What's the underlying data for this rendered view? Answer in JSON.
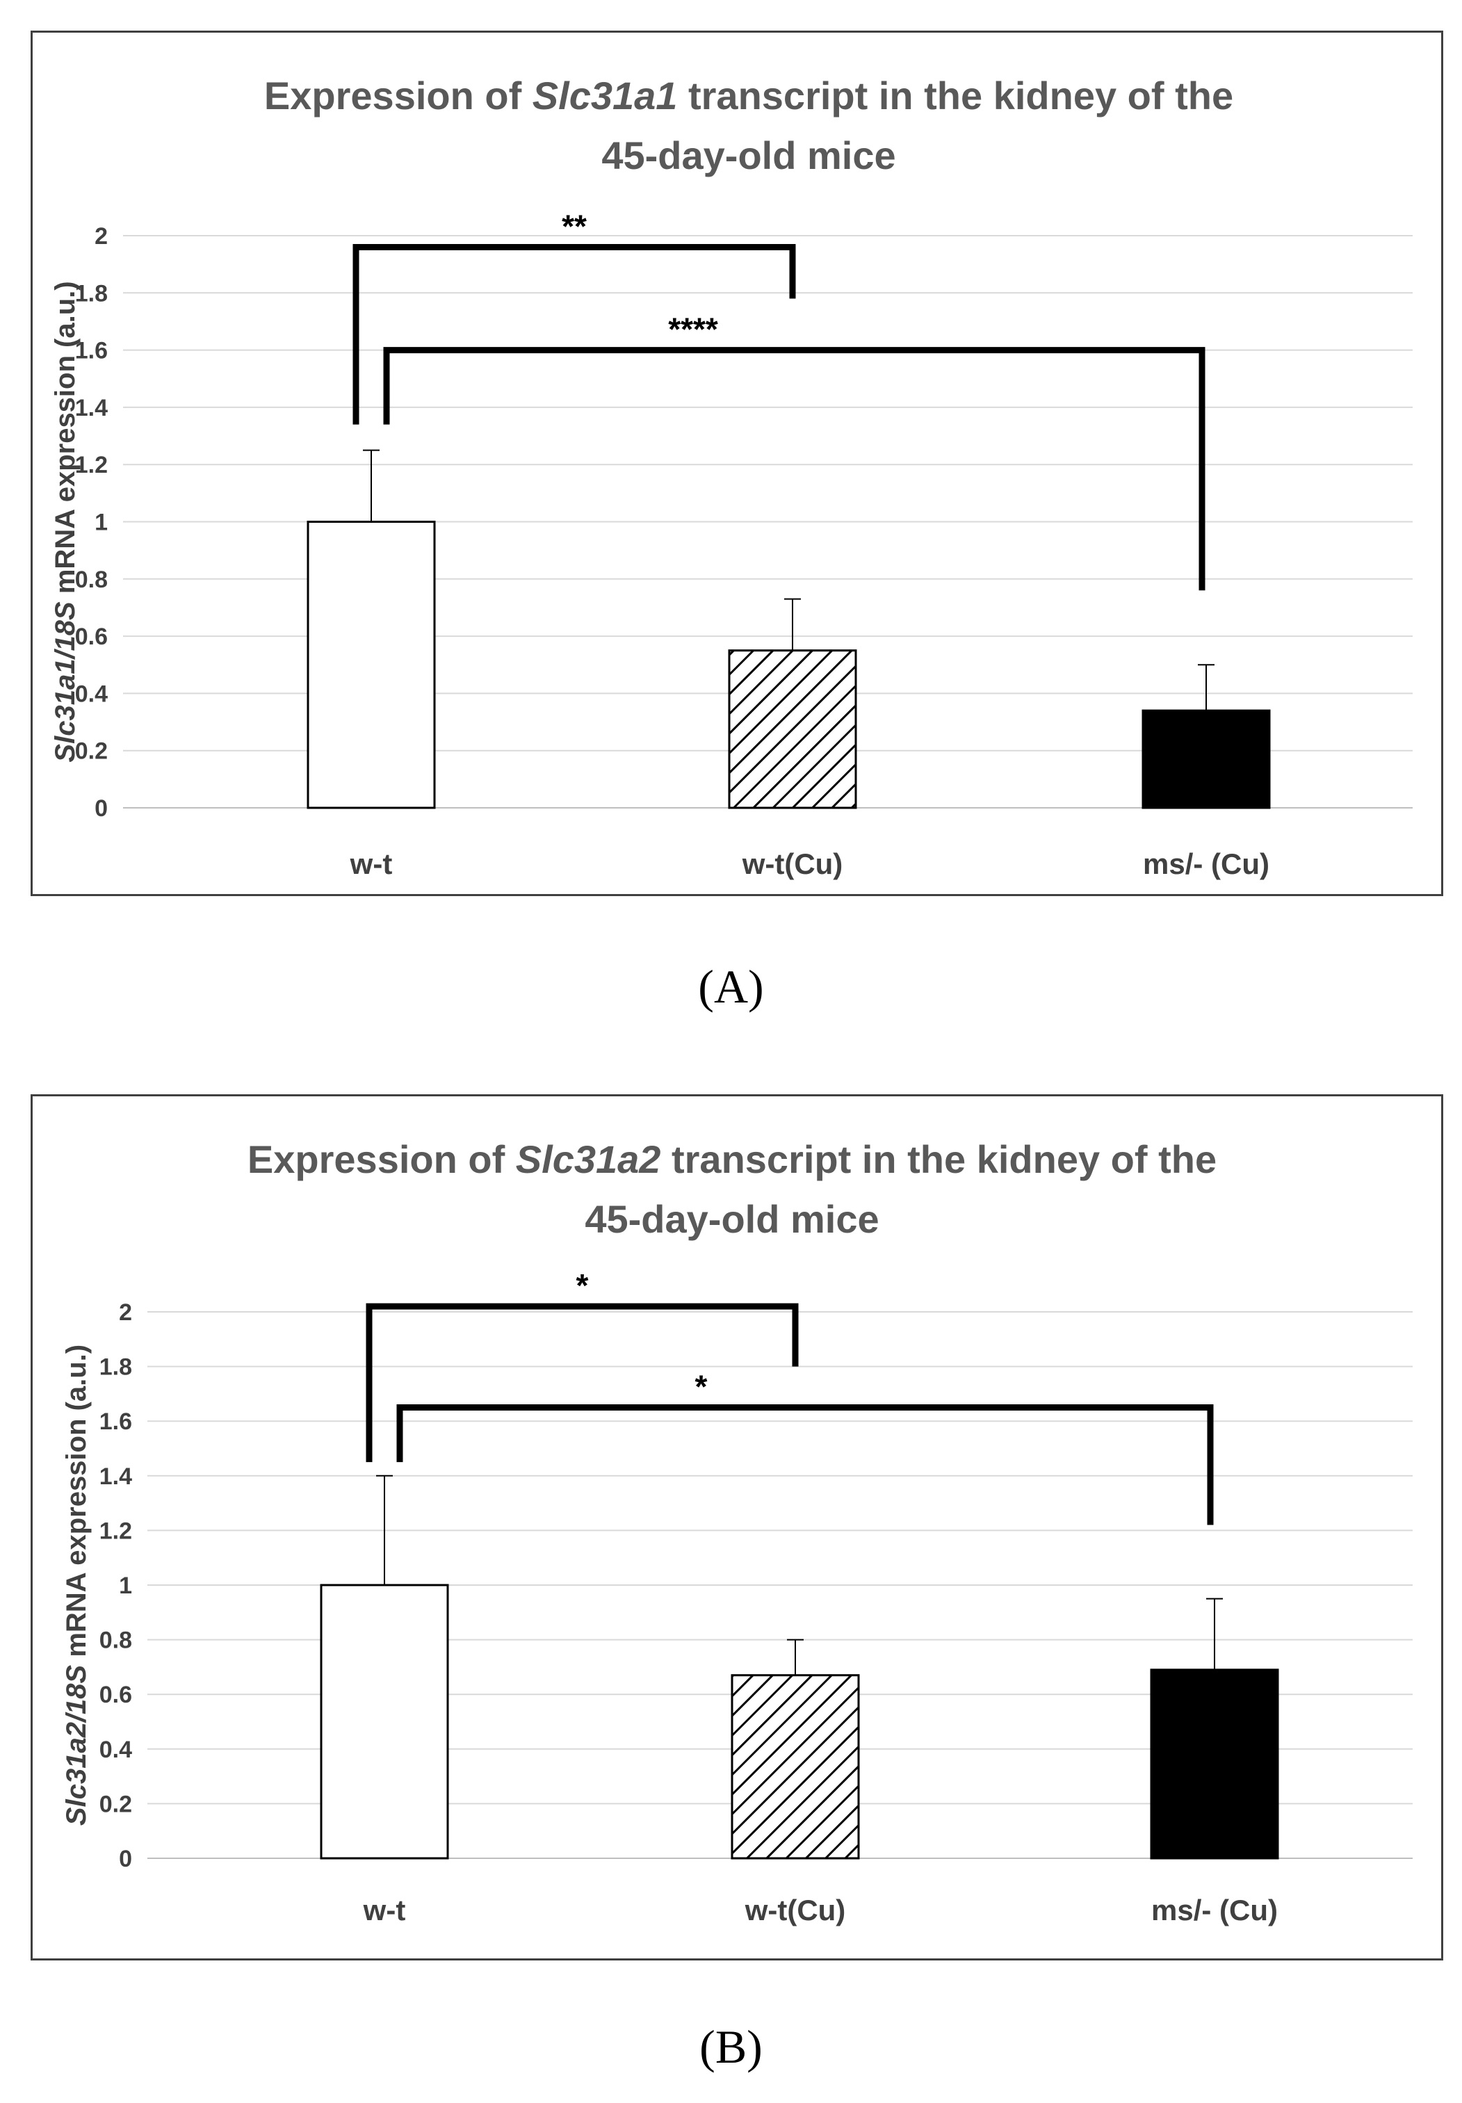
{
  "panels": [
    {
      "label": "(A)",
      "title_line1": [
        {
          "text": "Expression of ",
          "italic": false
        },
        {
          "text": "Slc31a1",
          "italic": true
        },
        {
          "text": " transcript in the kidney of the",
          "italic": false
        }
      ],
      "title_line2": "45-day-old mice",
      "ylabel": [
        {
          "text": "Slc31a1/18S",
          "italic": true
        },
        {
          "text": " mRNA expression (a.u.)",
          "italic": false
        }
      ],
      "chart_data": {
        "type": "bar",
        "categories": [
          "w-t",
          "w-t(Cu)",
          "ms/- (Cu)"
        ],
        "values": [
          1.0,
          0.55,
          0.34
        ],
        "error_bars": [
          0.25,
          0.18,
          0.16
        ],
        "bar_fills": [
          "white",
          "hatched",
          "black"
        ],
        "ylim": [
          0,
          2
        ],
        "yticks": [
          "0",
          "0.2",
          "0.4",
          "0.6",
          "0.8",
          "1",
          "1.2",
          "1.4",
          "1.6",
          "1.8",
          "2"
        ],
        "grid": true,
        "significance": [
          {
            "from": 0,
            "to": 1,
            "label": "**",
            "bracket_y": 1.96,
            "left_drop_y": 1.34,
            "right_drop_y": 1.78
          },
          {
            "from": 0,
            "to": 2,
            "label": "****",
            "bracket_y": 1.6,
            "left_drop_y": 1.34,
            "right_drop_y": 0.76
          }
        ]
      }
    },
    {
      "label": "(B)",
      "title_line1": [
        {
          "text": "Expression of ",
          "italic": false
        },
        {
          "text": "Slc31a2",
          "italic": true
        },
        {
          "text": " transcript in the kidney of the",
          "italic": false
        }
      ],
      "title_line2": "45-day-old mice",
      "ylabel": [
        {
          "text": "Slc31a2/18S",
          "italic": true
        },
        {
          "text": " mRNA expression (a.u.)",
          "italic": false
        }
      ],
      "chart_data": {
        "type": "bar",
        "categories": [
          "w-t",
          "w-t(Cu)",
          "ms/- (Cu)"
        ],
        "values": [
          1.0,
          0.67,
          0.69
        ],
        "error_bars": [
          0.4,
          0.13,
          0.26
        ],
        "bar_fills": [
          "white",
          "hatched",
          "black"
        ],
        "ylim": [
          0,
          2
        ],
        "yticks": [
          "0",
          "0.2",
          "0.4",
          "0.6",
          "0.8",
          "1",
          "1.2",
          "1.4",
          "1.6",
          "1.8",
          "2"
        ],
        "grid": true,
        "significance": [
          {
            "from": 0,
            "to": 1,
            "label": "*",
            "bracket_y": 2.02,
            "left_drop_y": 1.45,
            "right_drop_y": 1.8
          },
          {
            "from": 0,
            "to": 2,
            "label": "*",
            "bracket_y": 1.65,
            "left_drop_y": 1.45,
            "right_drop_y": 1.22
          }
        ]
      }
    }
  ]
}
